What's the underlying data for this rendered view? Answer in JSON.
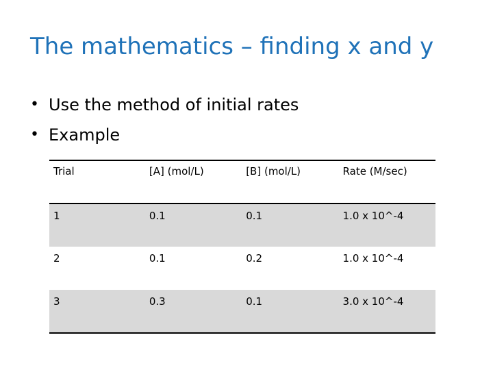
{
  "slide": {
    "title": "The mathematics – finding x and y",
    "bullets": [
      "Use the method of initial rates",
      "Example"
    ]
  },
  "table": {
    "headers": [
      "Trial",
      "[A]  (mol/L)",
      "[B]  (mol/L)",
      "Rate  (M/sec)"
    ],
    "rows": [
      [
        "1",
        "0.1",
        "0.1",
        "1.0 x 10^-4"
      ],
      [
        "2",
        "0.1",
        "0.2",
        "1.0 x 10^-4"
      ],
      [
        "3",
        "0.3",
        "0.1",
        "3.0 x 10^-4"
      ]
    ]
  },
  "colors": {
    "title": "#1f72b8",
    "row_shade": "#d9d9d9"
  }
}
